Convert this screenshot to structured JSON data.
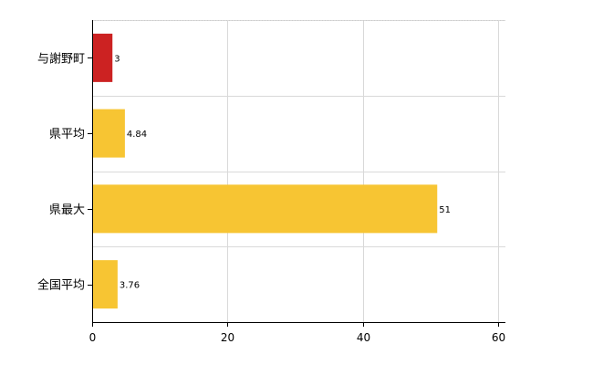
{
  "chart_data": {
    "type": "bar",
    "orientation": "horizontal",
    "categories": [
      "与謝野町",
      "県平均",
      "県最大",
      "全国平均"
    ],
    "values": [
      3,
      4.84,
      51,
      3.76
    ],
    "value_labels": [
      "3",
      "4.84",
      "51",
      "3.76"
    ],
    "bar_colors": [
      "#cc2222",
      "#f7c533",
      "#f7c533",
      "#f7c533"
    ],
    "xlim": [
      0,
      60
    ],
    "x_ticks": [
      0,
      20,
      40,
      60
    ],
    "x_tick_labels": [
      "0",
      "20",
      "40",
      "60"
    ],
    "grid": true,
    "title": "",
    "xlabel": "",
    "ylabel": ""
  }
}
